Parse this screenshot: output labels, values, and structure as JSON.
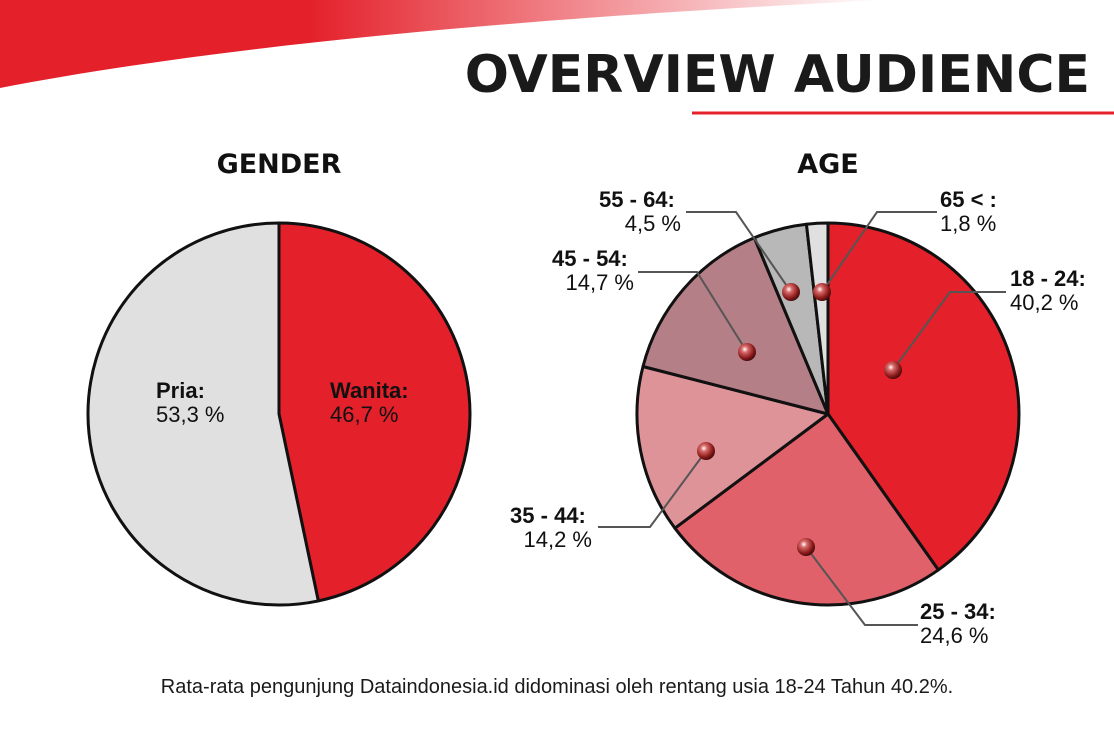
{
  "header": {
    "title": "OVERVIEW AUDIENCE",
    "accent_color": "#e4202a"
  },
  "caption": "Rata-rata pengunjung Dataindonesia.id didominasi oleh rentang usia 18-24 Tahun 40.2%.",
  "chart_data": [
    {
      "type": "pie",
      "title": "GENDER",
      "slices": [
        {
          "label": "Wanita:",
          "value": 46.7,
          "value_text": "46,7 %",
          "color": "#e4202a"
        },
        {
          "label": "Pria:",
          "value": 53.3,
          "value_text": "53,3 %",
          "color": "#e0e0e0"
        }
      ]
    },
    {
      "type": "pie",
      "title": "AGE",
      "slices": [
        {
          "label": "18 - 24:",
          "value": 40.2,
          "value_text": "40,2 %",
          "color": "#e4202a"
        },
        {
          "label": "25 - 34:",
          "value": 24.6,
          "value_text": "24,6 %",
          "color": "#e1616b"
        },
        {
          "label": "35 - 44:",
          "value": 14.2,
          "value_text": "14,2 %",
          "color": "#de9398"
        },
        {
          "label": "45 - 54:",
          "value": 14.7,
          "value_text": "14,7 %",
          "color": "#b47f86"
        },
        {
          "label": "55 - 64:",
          "value": 4.5,
          "value_text": "4,5 %",
          "color": "#b8b8b8"
        },
        {
          "label": "65 < :",
          "value": 1.8,
          "value_text": "1,8 %",
          "color": "#e0e0e0"
        }
      ]
    }
  ]
}
